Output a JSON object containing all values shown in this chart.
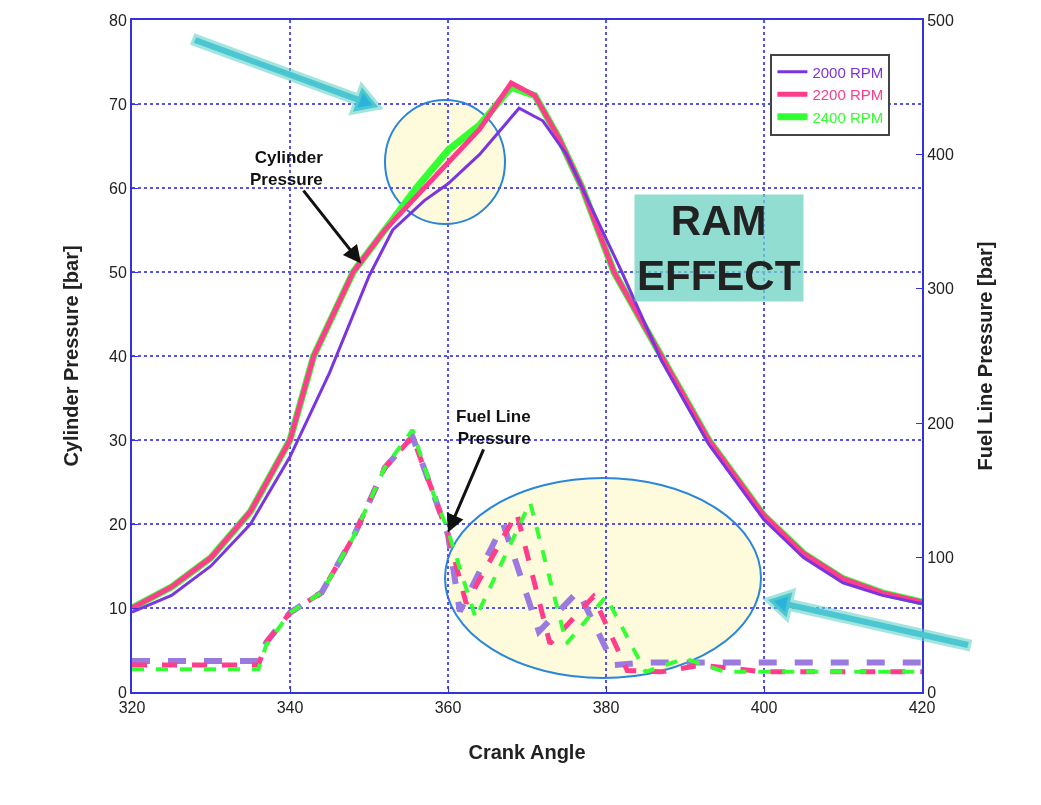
{
  "chart_data": {
    "type": "line",
    "xlabel": "Crank Angle",
    "ylabel": "Cylinder Pressure [bar]",
    "y2label": "Fuel Line Pressure [bar]",
    "xlim": [
      320,
      420
    ],
    "xticks": [
      320,
      340,
      360,
      380,
      400,
      420
    ],
    "ylim": [
      0,
      80
    ],
    "yticks": [
      0,
      10,
      20,
      30,
      40,
      50,
      60,
      70,
      80
    ],
    "y2lim": [
      0,
      500
    ],
    "y2ticks": [
      0,
      100,
      200,
      300,
      400,
      500
    ],
    "grid": true,
    "legend": "top right",
    "annotations": [
      {
        "text": "Cylinder Pressure",
        "x": 349,
        "y": 51
      },
      {
        "text": "Fuel Line Pressure",
        "x": 360,
        "y": 19
      },
      "RAM EFFECT"
    ],
    "series": [
      {
        "name": "2000 RPM",
        "color": "#7a35e0",
        "line_style": "solid",
        "x": [
          320,
          325,
          330,
          335,
          340,
          345,
          350,
          353,
          357,
          360,
          364,
          369,
          372,
          375,
          378,
          382,
          387,
          393,
          400,
          405,
          410,
          415,
          420
        ],
        "values": [
          9.5,
          11.5,
          15,
          20,
          28,
          38,
          49.5,
          55,
          58.5,
          60.5,
          64,
          69.5,
          68,
          64,
          58,
          50,
          39.5,
          29.5,
          20.5,
          16,
          13,
          11.5,
          10.5
        ]
      },
      {
        "name": "2200 RPM",
        "color": "#ff3d8b",
        "line_style": "solid",
        "x": [
          320,
          325,
          330,
          335,
          340,
          343,
          348,
          352,
          356,
          360,
          364,
          368,
          371,
          374,
          377,
          381,
          387,
          393,
          400,
          405,
          410,
          415,
          420
        ],
        "values": [
          10,
          12.5,
          16,
          21.5,
          30,
          40,
          50,
          55,
          59,
          63,
          67,
          72.5,
          71,
          66,
          60,
          50,
          40,
          30,
          21,
          16.5,
          13.5,
          11.8,
          10.7
        ]
      },
      {
        "name": "2400 RPM",
        "color": "#33ff33",
        "line_style": "solid",
        "x": [
          320,
          325,
          330,
          335,
          340,
          343,
          348,
          352,
          356,
          360,
          364,
          368,
          371,
          374,
          377,
          381,
          387,
          393,
          400,
          405,
          410,
          415,
          420
        ],
        "values": [
          10,
          12.5,
          16,
          21.5,
          30,
          40,
          50,
          55,
          60,
          64.5,
          67.5,
          72,
          71,
          66,
          60,
          50,
          40,
          30,
          21,
          16.5,
          13.5,
          11.8,
          10.7
        ]
      },
      {
        "color": "#9b7ae0",
        "axis": "y2",
        "line_style": "dashed",
        "x": [
          320,
          336,
          337,
          340,
          344,
          348,
          352,
          355.5,
          358,
          360,
          361.5,
          367,
          371.5,
          376.5,
          381,
          385,
          390,
          400,
          410,
          420
        ],
        "values": [
          23,
          23,
          37,
          59,
          74,
          115,
          167,
          190,
          150,
          117,
          60,
          125,
          45,
          75,
          20,
          22,
          22,
          22,
          22,
          22
        ]
      },
      {
        "color": "#ff3d8b",
        "axis": "y2",
        "line_style": "dashed",
        "x": [
          320,
          336,
          337,
          340,
          344,
          348,
          352,
          355.5,
          358,
          360,
          362.3,
          368.7,
          372.9,
          378.4,
          382.7,
          387,
          392,
          400,
          410,
          420
        ],
        "values": [
          20,
          20,
          37,
          59,
          74,
          115,
          167,
          190,
          150,
          117,
          66,
          133,
          36,
          71,
          16,
          15,
          20,
          15,
          15,
          15
        ]
      },
      {
        "color": "#33ff33",
        "axis": "y2",
        "line_style": "dashed",
        "x": [
          320,
          336,
          337,
          340,
          344,
          348,
          352,
          355.5,
          358,
          360,
          363.5,
          370.4,
          375,
          380,
          385,
          390,
          395,
          400,
          410,
          420
        ],
        "values": [
          17,
          17,
          35,
          59,
          74,
          115,
          167,
          195,
          150,
          120,
          55,
          141,
          36,
          71,
          15,
          25,
          15,
          15,
          15,
          15
        ]
      }
    ]
  }
}
